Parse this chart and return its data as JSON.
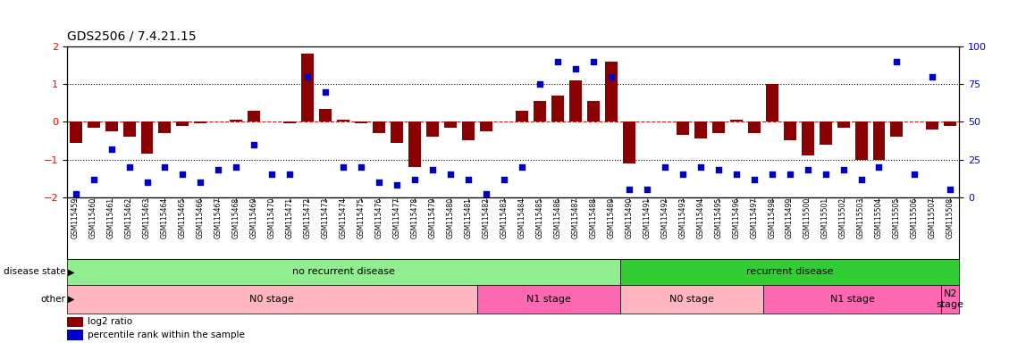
{
  "title": "GDS2506 / 7.4.21.15",
  "sample_ids": [
    "GSM115459",
    "GSM115460",
    "GSM115461",
    "GSM115462",
    "GSM115463",
    "GSM115464",
    "GSM115465",
    "GSM115466",
    "GSM115467",
    "GSM115468",
    "GSM115469",
    "GSM115470",
    "GSM115471",
    "GSM115472",
    "GSM115473",
    "GSM115474",
    "GSM115475",
    "GSM115476",
    "GSM115477",
    "GSM115478",
    "GSM115479",
    "GSM115480",
    "GSM115481",
    "GSM115482",
    "GSM115483",
    "GSM115484",
    "GSM115485",
    "GSM115486",
    "GSM115487",
    "GSM115488",
    "GSM115489",
    "GSM115490",
    "GSM115491",
    "GSM115492",
    "GSM115493",
    "GSM115494",
    "GSM115495",
    "GSM115496",
    "GSM115497",
    "GSM115498",
    "GSM115499",
    "GSM115500",
    "GSM115501",
    "GSM115502",
    "GSM115503",
    "GSM115504",
    "GSM115505",
    "GSM115506",
    "GSM115507",
    "GSM115508"
  ],
  "log2_ratio": [
    -0.55,
    -0.15,
    -0.25,
    -0.4,
    -0.85,
    -0.3,
    -0.1,
    -0.05,
    0.0,
    0.05,
    0.3,
    0.0,
    -0.05,
    1.8,
    0.35,
    0.05,
    -0.05,
    -0.3,
    -0.55,
    -1.2,
    -0.4,
    -0.15,
    -0.5,
    -0.25,
    0.0,
    0.3,
    0.55,
    0.7,
    1.1,
    0.55,
    1.6,
    -1.1,
    0.0,
    0.0,
    -0.35,
    -0.45,
    -0.3,
    0.05,
    -0.3,
    1.0,
    -0.5,
    -0.9,
    -0.6,
    -0.15,
    -1.0,
    -1.0,
    -0.4,
    0.0,
    -0.2,
    -0.1
  ],
  "percentile": [
    2,
    12,
    32,
    20,
    10,
    20,
    15,
    10,
    18,
    20,
    35,
    15,
    15,
    80,
    70,
    20,
    20,
    10,
    8,
    12,
    18,
    15,
    12,
    2,
    12,
    20,
    75,
    90,
    85,
    90,
    80,
    5,
    5,
    20,
    15,
    20,
    18,
    15,
    12,
    15,
    15,
    18,
    15,
    18,
    12,
    20,
    90,
    15,
    80,
    5
  ],
  "bar_color": "#8B0000",
  "point_color": "#0000CD",
  "background_color": "#ffffff",
  "ylim_left": [
    -2,
    2
  ],
  "ylim_right": [
    0,
    100
  ],
  "yticks_left": [
    -2,
    -1,
    0,
    1,
    2
  ],
  "yticks_right": [
    0,
    25,
    50,
    75,
    100
  ],
  "disease_state_labels": [
    "no recurrent disease",
    "recurrent disease"
  ],
  "disease_state_colors": [
    "#90EE90",
    "#32CD32"
  ],
  "disease_state_ranges": [
    [
      0,
      31
    ],
    [
      31,
      50
    ]
  ],
  "other_labels": [
    "N0 stage",
    "N1 stage",
    "N0 stage",
    "N1 stage",
    "N2\nstage"
  ],
  "other_colors": [
    "#FFB6C1",
    "#FF69B4",
    "#FFB6C1",
    "#FF69B4",
    "#FF69B4"
  ],
  "other_ranges": [
    [
      0,
      23
    ],
    [
      23,
      31
    ],
    [
      31,
      39
    ],
    [
      39,
      49
    ],
    [
      49,
      50
    ]
  ],
  "legend_labels": [
    "log2 ratio",
    "percentile rank within the sample"
  ],
  "legend_colors": [
    "#8B0000",
    "#0000CD"
  ]
}
